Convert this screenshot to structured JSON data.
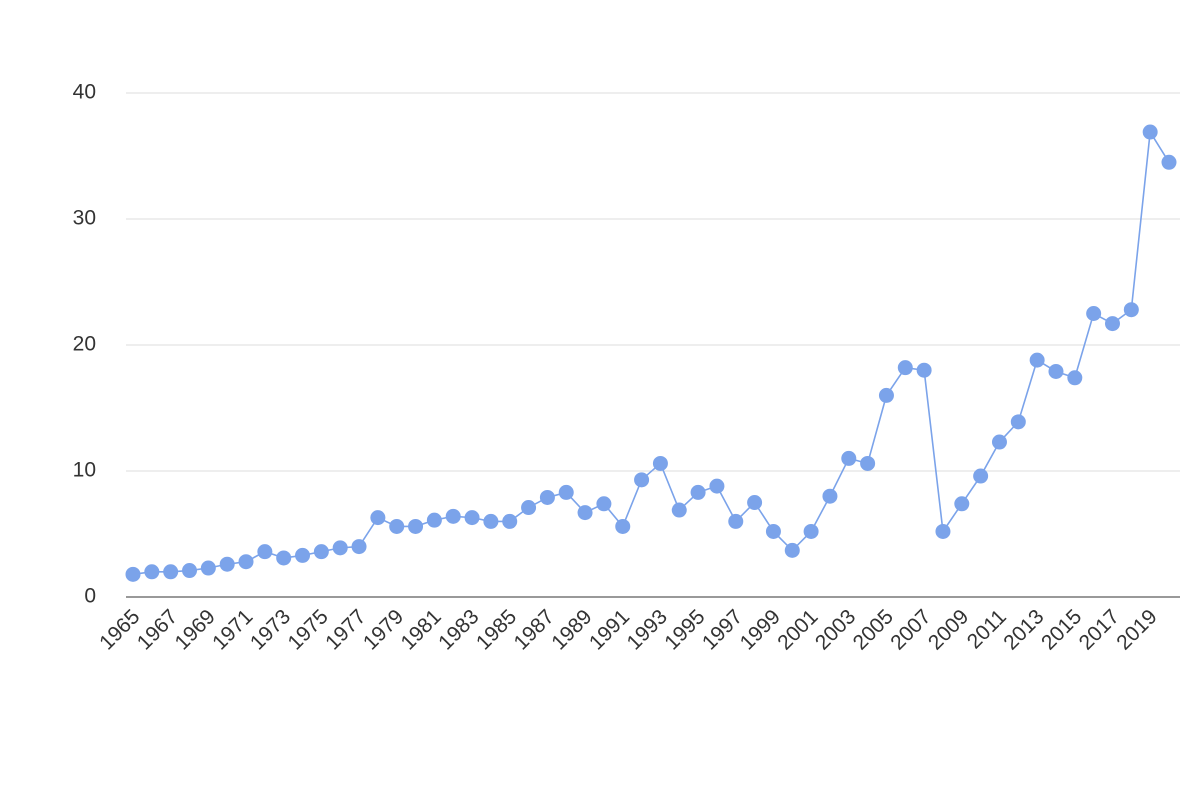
{
  "chart_data": {
    "type": "line",
    "categories": [
      "1965",
      null,
      "1967",
      null,
      "1969",
      null,
      "1971",
      null,
      "1973",
      null,
      "1975",
      null,
      "1977",
      null,
      "1979",
      null,
      "1981",
      null,
      "1983",
      null,
      "1985",
      null,
      "1987",
      null,
      "1989",
      null,
      "1991",
      null,
      "1993",
      null,
      "1995",
      null,
      "1997",
      null,
      "1999",
      null,
      "2001",
      null,
      "2003",
      null,
      "2005",
      null,
      "2007",
      null,
      "2009",
      null,
      "2011",
      null,
      "2013",
      null,
      "2015",
      null,
      "2017",
      null,
      "2019",
      null
    ],
    "values": [
      1.8,
      2.0,
      2.0,
      2.1,
      2.3,
      2.6,
      2.8,
      3.6,
      3.1,
      3.3,
      3.6,
      3.9,
      4.0,
      6.3,
      5.6,
      5.6,
      6.1,
      6.4,
      6.3,
      6.0,
      6.0,
      7.1,
      7.9,
      8.3,
      6.7,
      7.4,
      5.6,
      9.3,
      10.6,
      6.9,
      8.3,
      8.8,
      6.0,
      7.5,
      5.2,
      3.7,
      5.2,
      8.0,
      11.0,
      10.6,
      16.0,
      18.2,
      18.0,
      5.2,
      7.4,
      9.6,
      12.3,
      13.9,
      18.8,
      17.9,
      17.4,
      22.5,
      21.7,
      22.8,
      36.9,
      34.5
    ],
    "color": "#7ba3ea",
    "ylim": [
      0,
      40
    ],
    "yticks": [
      0,
      10,
      20,
      30,
      40
    ],
    "grid": true
  }
}
